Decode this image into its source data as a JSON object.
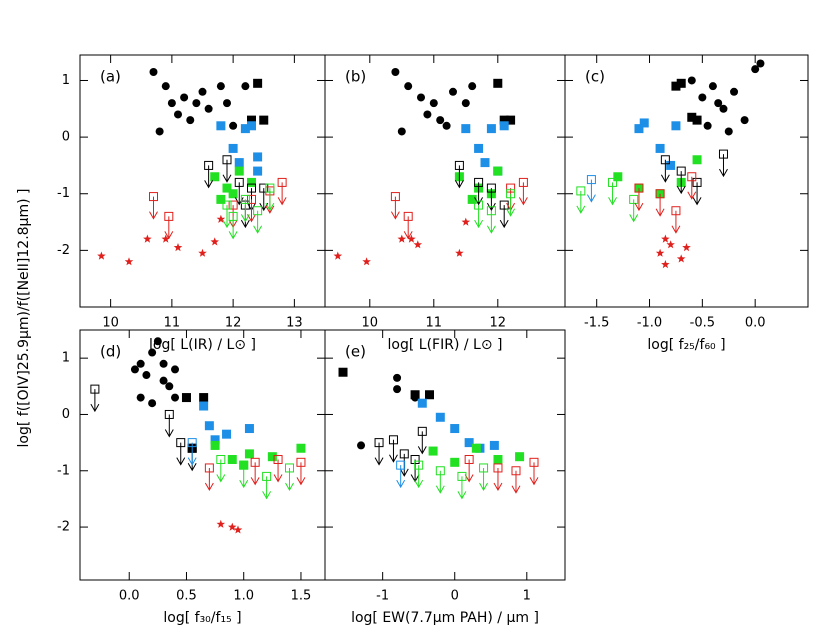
{
  "chart_data": [
    {
      "type": "scatter",
      "panel_label": "(a)",
      "ylabel": "log[ f([OIV]25.9μm)/f([NeII]12.8μm) ]",
      "xlabel": "log[  L(IR) / L⊙ ]",
      "xlim": [
        9.5,
        13.5
      ],
      "ylim": [
        -3,
        1.45
      ],
      "xticks": [
        10,
        11,
        12,
        13
      ],
      "yticks": [
        -2,
        -1,
        0,
        1
      ],
      "ytick_labels_shown": true,
      "series": [
        {
          "color": "#000000",
          "marker": "circle",
          "x": [
            10.7,
            10.9,
            11.0,
            11.2,
            11.3,
            11.5,
            11.6,
            11.8,
            11.9,
            12.0,
            12.2,
            10.8,
            11.1,
            11.4
          ],
          "values": [
            1.15,
            0.9,
            0.6,
            0.7,
            0.3,
            0.8,
            0.5,
            0.9,
            0.6,
            0.2,
            0.9,
            0.1,
            0.4,
            0.6
          ]
        },
        {
          "color": "#000000",
          "marker": "square",
          "x": [
            12.4,
            12.5,
            12.3
          ],
          "values": [
            0.95,
            0.3,
            0.3
          ]
        },
        {
          "color": "#1e8fe6",
          "marker": "square",
          "x": [
            11.8,
            12.0,
            12.2,
            12.3,
            12.4,
            12.1,
            12.4
          ],
          "values": [
            0.2,
            -0.2,
            0.15,
            0.2,
            -0.35,
            -0.45,
            -0.6
          ]
        },
        {
          "color": "#22e022",
          "marker": "square",
          "x": [
            11.7,
            11.9,
            12.0,
            12.1,
            12.3,
            11.8
          ],
          "values": [
            -0.7,
            -0.9,
            -1.0,
            -0.6,
            -0.8,
            -1.1
          ]
        },
        {
          "color": "#e0201c",
          "marker": "star",
          "x": [
            9.85,
            10.3,
            10.6,
            10.9,
            11.1,
            11.5,
            11.8,
            11.7
          ],
          "values": [
            -2.1,
            -2.2,
            -1.8,
            -1.8,
            -1.95,
            -2.05,
            -1.45,
            -1.85
          ]
        },
        {
          "color": "#000000",
          "marker": "limit",
          "x": [
            11.6,
            11.9,
            12.1,
            12.3,
            12.5,
            12.2
          ],
          "values": [
            -0.5,
            -0.4,
            -0.8,
            -0.9,
            -0.9,
            -1.2
          ]
        },
        {
          "color": "#e0201c",
          "marker": "limit",
          "x": [
            10.7,
            10.95,
            12.6,
            12.8,
            12.0,
            12.3
          ],
          "values": [
            -1.05,
            -1.4,
            -0.95,
            -0.8,
            -1.2,
            -1.1
          ]
        },
        {
          "color": "#22e022",
          "marker": "limit",
          "x": [
            11.9,
            12.0,
            12.2,
            12.4,
            12.6
          ],
          "values": [
            -1.2,
            -1.4,
            -1.1,
            -1.3,
            -0.9
          ]
        }
      ]
    },
    {
      "type": "scatter",
      "panel_label": "(b)",
      "xlabel": "log[  L(FIR) / L⊙ ]",
      "xlim": [
        9.3,
        13.05
      ],
      "ylim": [
        -3,
        1.45
      ],
      "xticks": [
        10,
        11,
        12
      ],
      "yticks": [
        -2,
        -1,
        0,
        1
      ],
      "ytick_labels_shown": false,
      "series": [
        {
          "color": "#000000",
          "marker": "circle",
          "x": [
            10.4,
            10.6,
            10.8,
            11.0,
            11.1,
            11.3,
            11.5,
            11.6,
            10.5,
            10.9,
            11.2
          ],
          "values": [
            1.15,
            0.9,
            0.7,
            0.6,
            0.3,
            0.8,
            0.6,
            0.9,
            0.1,
            0.4,
            0.2
          ]
        },
        {
          "color": "#000000",
          "marker": "square",
          "x": [
            12.0,
            12.2,
            12.1
          ],
          "values": [
            0.95,
            0.3,
            0.3
          ]
        },
        {
          "color": "#1e8fe6",
          "marker": "square",
          "x": [
            11.5,
            11.7,
            11.9,
            12.1,
            11.8,
            12.0
          ],
          "values": [
            0.15,
            -0.2,
            0.15,
            0.2,
            -0.45,
            -0.6
          ]
        },
        {
          "color": "#22e022",
          "marker": "square",
          "x": [
            11.4,
            11.7,
            11.9,
            12.0,
            11.6
          ],
          "values": [
            -0.7,
            -0.9,
            -1.0,
            -0.6,
            -1.1
          ]
        },
        {
          "color": "#e0201c",
          "marker": "star",
          "x": [
            9.5,
            9.95,
            10.5,
            10.65,
            10.75,
            11.4,
            11.5
          ],
          "values": [
            -2.1,
            -2.2,
            -1.8,
            -1.8,
            -1.9,
            -2.05,
            -1.5
          ]
        },
        {
          "color": "#000000",
          "marker": "limit",
          "x": [
            11.4,
            11.7,
            11.9,
            12.1
          ],
          "values": [
            -0.5,
            -0.8,
            -0.9,
            -1.2
          ]
        },
        {
          "color": "#e0201c",
          "marker": "limit",
          "x": [
            10.4,
            10.6,
            12.2,
            12.4
          ],
          "values": [
            -1.05,
            -1.4,
            -0.9,
            -0.8
          ]
        },
        {
          "color": "#22e022",
          "marker": "limit",
          "x": [
            11.7,
            11.9,
            12.2
          ],
          "values": [
            -1.2,
            -1.3,
            -1.0
          ]
        }
      ]
    },
    {
      "type": "scatter",
      "panel_label": "(c)",
      "xlabel": "log[  f₂₅/f₆₀ ]",
      "xlim": [
        -1.8,
        0.5
      ],
      "ylim": [
        -3,
        1.45
      ],
      "xticks": [
        -1.5,
        {
          "value": -1.0,
          "label": "-1.0"
        },
        -0.5,
        {
          "value": 0.0,
          "label": "0.0"
        }
      ],
      "yticks": [
        -2,
        -1,
        0,
        1
      ],
      "ytick_labels_shown": false,
      "series": [
        {
          "color": "#000000",
          "marker": "circle",
          "x": [
            -0.6,
            -0.5,
            -0.4,
            -0.3,
            -0.2,
            -0.1,
            0.0,
            -0.45,
            -0.25,
            -0.35,
            0.05
          ],
          "values": [
            1.0,
            0.7,
            0.9,
            0.5,
            0.8,
            0.3,
            1.2,
            0.2,
            0.1,
            0.6,
            1.3
          ]
        },
        {
          "color": "#000000",
          "marker": "square",
          "x": [
            -0.7,
            -0.75,
            -0.55,
            -0.6
          ],
          "values": [
            0.95,
            0.9,
            0.3,
            0.35
          ]
        },
        {
          "color": "#1e8fe6",
          "marker": "square",
          "x": [
            -1.05,
            -1.1,
            -0.75,
            -0.9,
            -0.8
          ],
          "values": [
            0.25,
            0.15,
            0.2,
            -0.2,
            -0.5
          ]
        },
        {
          "color": "#22e022",
          "marker": "square",
          "x": [
            -1.3,
            -1.1,
            -0.9,
            -0.7,
            -0.55
          ],
          "values": [
            -0.7,
            -0.9,
            -1.0,
            -0.8,
            -0.4
          ]
        },
        {
          "color": "#e0201c",
          "marker": "star",
          "x": [
            -0.85,
            -0.8,
            -0.9,
            -0.7,
            -0.65,
            -0.85
          ],
          "values": [
            -1.8,
            -1.9,
            -2.05,
            -2.15,
            -1.95,
            -2.25
          ]
        },
        {
          "color": "#000000",
          "marker": "limit",
          "x": [
            -0.85,
            -0.7,
            -0.55,
            -0.3
          ],
          "values": [
            -0.4,
            -0.6,
            -0.8,
            -0.3
          ]
        },
        {
          "color": "#22e022",
          "marker": "limit",
          "x": [
            -1.65,
            -1.35,
            -1.15
          ],
          "values": [
            -0.95,
            -0.8,
            -1.1
          ]
        },
        {
          "color": "#e0201c",
          "marker": "limit",
          "x": [
            -1.1,
            -0.9,
            -0.75,
            -0.6
          ],
          "values": [
            -0.9,
            -1.0,
            -1.3,
            -0.7
          ]
        },
        {
          "color": "#1e8fe6",
          "marker": "limit",
          "x": [
            -1.55
          ],
          "values": [
            -0.75
          ]
        }
      ]
    },
    {
      "type": "scatter",
      "panel_label": "(d)",
      "xlabel": "log[  f₃₀/f₁₅ ]",
      "xlim": [
        -0.43,
        1.71
      ],
      "ylim": [
        -2.94,
        1.5
      ],
      "xticks": [
        {
          "value": 0.0,
          "label": "0.0"
        },
        0.5,
        {
          "value": 1.0,
          "label": "1.0"
        },
        1.5
      ],
      "yticks": [
        -2,
        -1,
        0,
        1
      ],
      "ytick_labels_shown": true,
      "series": [
        {
          "color": "#000000",
          "marker": "circle",
          "x": [
            0.05,
            0.1,
            0.15,
            0.2,
            0.25,
            0.3,
            0.35,
            0.4,
            0.2,
            0.3,
            0.4,
            0.1
          ],
          "values": [
            0.8,
            0.9,
            0.7,
            1.1,
            1.3,
            0.9,
            0.5,
            0.3,
            0.2,
            0.6,
            0.8,
            0.3
          ]
        },
        {
          "color": "#000000",
          "marker": "square",
          "x": [
            0.5,
            0.65,
            0.55
          ],
          "values": [
            0.3,
            0.3,
            -0.6
          ]
        },
        {
          "color": "#1e8fe6",
          "marker": "square",
          "x": [
            0.65,
            0.7,
            0.85,
            1.05,
            0.75
          ],
          "values": [
            0.15,
            -0.2,
            -0.35,
            -0.25,
            -0.45
          ]
        },
        {
          "color": "#22e022",
          "marker": "square",
          "x": [
            0.75,
            0.9,
            1.05,
            1.25,
            1.5,
            1.0
          ],
          "values": [
            -0.55,
            -0.8,
            -0.7,
            -0.75,
            -0.6,
            -0.9
          ]
        },
        {
          "color": "#e0201c",
          "marker": "star",
          "x": [
            0.8,
            0.9,
            0.95
          ],
          "values": [
            -1.95,
            -2.0,
            -2.05
          ]
        },
        {
          "color": "#000000",
          "marker": "limit",
          "x": [
            -0.3,
            0.35,
            0.45,
            0.55
          ],
          "values": [
            0.45,
            0.0,
            -0.5,
            -0.6
          ]
        },
        {
          "color": "#e0201c",
          "marker": "limit",
          "x": [
            0.7,
            1.1,
            1.3,
            1.5
          ],
          "values": [
            -0.95,
            -0.85,
            -0.8,
            -0.85
          ]
        },
        {
          "color": "#22e022",
          "marker": "limit",
          "x": [
            0.8,
            1.0,
            1.2,
            1.4
          ],
          "values": [
            -0.8,
            -0.9,
            -1.1,
            -0.95
          ]
        },
        {
          "color": "#1e8fe6",
          "marker": "limit",
          "x": [
            0.55
          ],
          "values": [
            -0.5
          ]
        }
      ]
    },
    {
      "type": "scatter",
      "panel_label": "(e)",
      "xlabel": "log[  EW(7.7μm PAH) / μm ]",
      "xlim": [
        -1.8,
        1.53
      ],
      "ylim": [
        -2.94,
        1.5
      ],
      "xticks": [
        -1,
        0,
        1
      ],
      "yticks": [
        -2,
        -1,
        0,
        1
      ],
      "ytick_labels_shown": false,
      "series": [
        {
          "color": "#000000",
          "marker": "circle",
          "x": [
            -1.3,
            -0.8,
            -0.8,
            -0.55
          ],
          "values": [
            -0.55,
            0.65,
            0.45,
            0.3
          ]
        },
        {
          "color": "#000000",
          "marker": "square",
          "x": [
            -1.55,
            -0.55,
            -0.35
          ],
          "values": [
            0.75,
            0.35,
            0.35
          ]
        },
        {
          "color": "#1e8fe6",
          "marker": "square",
          "x": [
            -0.45,
            -0.2,
            0.0,
            0.2,
            0.35,
            0.55
          ],
          "values": [
            0.2,
            -0.05,
            -0.25,
            -0.5,
            -0.6,
            -0.55
          ]
        },
        {
          "color": "#22e022",
          "marker": "square",
          "x": [
            -0.3,
            0.0,
            0.3,
            0.6,
            0.9
          ],
          "values": [
            -0.65,
            -0.85,
            -0.6,
            -0.8,
            -0.75
          ]
        },
        {
          "color": "#000000",
          "marker": "limit",
          "x": [
            -1.05,
            -0.85,
            -0.7,
            -0.55,
            -0.45
          ],
          "values": [
            -0.5,
            -0.45,
            -0.7,
            -0.8,
            -0.3
          ]
        },
        {
          "color": "#e0201c",
          "marker": "limit",
          "x": [
            0.2,
            0.6,
            0.85,
            1.1
          ],
          "values": [
            -0.8,
            -0.95,
            -1.0,
            -0.85
          ]
        },
        {
          "color": "#22e022",
          "marker": "limit",
          "x": [
            -0.5,
            -0.2,
            0.1,
            0.4
          ],
          "values": [
            -0.9,
            -1.0,
            -1.1,
            -0.95
          ]
        },
        {
          "color": "#1e8fe6",
          "marker": "limit",
          "x": [
            -0.75
          ],
          "values": [
            -0.9
          ]
        }
      ]
    }
  ]
}
